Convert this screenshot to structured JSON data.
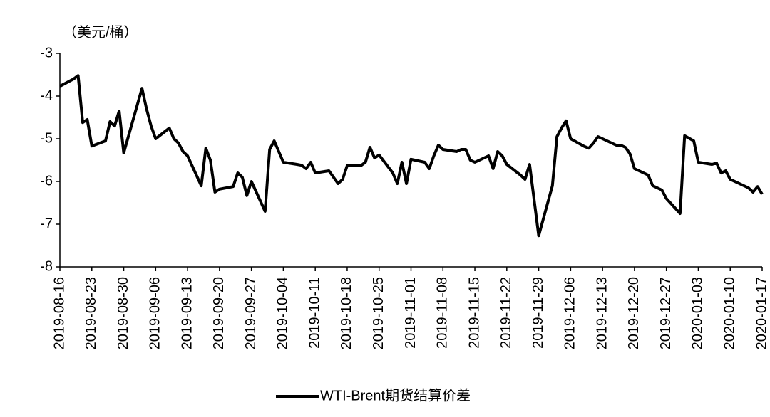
{
  "chart_data": {
    "type": "line",
    "y_label": "（美元/桶）",
    "x": [
      "2019-08-16",
      "2019-08-19",
      "2019-08-20",
      "2019-08-21",
      "2019-08-22",
      "2019-08-23",
      "2019-08-26",
      "2019-08-27",
      "2019-08-28",
      "2019-08-29",
      "2019-08-30",
      "2019-09-03",
      "2019-09-04",
      "2019-09-05",
      "2019-09-06",
      "2019-09-09",
      "2019-09-10",
      "2019-09-11",
      "2019-09-12",
      "2019-09-13",
      "2019-09-16",
      "2019-09-17",
      "2019-09-18",
      "2019-09-19",
      "2019-09-20",
      "2019-09-23",
      "2019-09-24",
      "2019-09-25",
      "2019-09-26",
      "2019-09-27",
      "2019-09-30",
      "2019-10-01",
      "2019-10-02",
      "2019-10-03",
      "2019-10-04",
      "2019-10-07",
      "2019-10-08",
      "2019-10-09",
      "2019-10-10",
      "2019-10-11",
      "2019-10-14",
      "2019-10-15",
      "2019-10-16",
      "2019-10-17",
      "2019-10-18",
      "2019-10-21",
      "2019-10-22",
      "2019-10-23",
      "2019-10-24",
      "2019-10-25",
      "2019-10-28",
      "2019-10-29",
      "2019-10-30",
      "2019-10-31",
      "2019-11-01",
      "2019-11-04",
      "2019-11-05",
      "2019-11-06",
      "2019-11-07",
      "2019-11-08",
      "2019-11-11",
      "2019-11-12",
      "2019-11-13",
      "2019-11-14",
      "2019-11-15",
      "2019-11-18",
      "2019-11-19",
      "2019-11-20",
      "2019-11-21",
      "2019-11-22",
      "2019-11-25",
      "2019-11-26",
      "2019-11-27",
      "2019-11-29",
      "2019-12-02",
      "2019-12-03",
      "2019-12-04",
      "2019-12-05",
      "2019-12-06",
      "2019-12-09",
      "2019-12-10",
      "2019-12-11",
      "2019-12-12",
      "2019-12-13",
      "2019-12-16",
      "2019-12-17",
      "2019-12-18",
      "2019-12-19",
      "2019-12-20",
      "2019-12-23",
      "2019-12-24",
      "2019-12-26",
      "2019-12-27",
      "2019-12-30",
      "2019-12-31",
      "2020-01-02",
      "2020-01-03",
      "2020-01-06",
      "2020-01-07",
      "2020-01-08",
      "2020-01-09",
      "2020-01-10",
      "2020-01-13",
      "2020-01-14",
      "2020-01-15",
      "2020-01-16",
      "2020-01-17"
    ],
    "series": [
      {
        "name": "WTI-Brent期货结算价差",
        "color": "#000000",
        "values": [
          -3.77,
          -3.6,
          -3.52,
          -4.62,
          -4.55,
          -5.17,
          -5.05,
          -4.6,
          -4.7,
          -4.35,
          -5.33,
          -3.82,
          -4.3,
          -4.7,
          -5.0,
          -4.75,
          -5.0,
          -5.1,
          -5.3,
          -5.4,
          -6.1,
          -5.22,
          -5.5,
          -6.25,
          -6.18,
          -6.12,
          -5.8,
          -5.9,
          -6.33,
          -6.0,
          -6.7,
          -5.25,
          -5.05,
          -5.3,
          -5.55,
          -5.6,
          -5.62,
          -5.7,
          -5.55,
          -5.8,
          -5.75,
          -5.9,
          -6.05,
          -5.95,
          -5.63,
          -5.63,
          -5.55,
          -5.2,
          -5.45,
          -5.38,
          -5.8,
          -6.05,
          -5.55,
          -6.05,
          -5.48,
          -5.55,
          -5.7,
          -5.4,
          -5.15,
          -5.25,
          -5.3,
          -5.25,
          -5.25,
          -5.5,
          -5.55,
          -5.4,
          -5.7,
          -5.3,
          -5.4,
          -5.6,
          -5.85,
          -5.95,
          -5.6,
          -7.27,
          -6.1,
          -4.95,
          -4.75,
          -4.58,
          -5.0,
          -5.18,
          -5.22,
          -5.1,
          -4.95,
          -5.0,
          -5.15,
          -5.15,
          -5.2,
          -5.35,
          -5.7,
          -5.85,
          -6.1,
          -6.2,
          -6.4,
          -6.75,
          -4.93,
          -5.05,
          -5.55,
          -5.6,
          -5.57,
          -5.8,
          -5.75,
          -5.95,
          -6.1,
          -6.15,
          -6.25,
          -6.12,
          -6.3
        ]
      }
    ],
    "xlim": [
      "2019-08-16",
      "2020-01-17"
    ],
    "xticks": [
      "2019-08-16",
      "2019-08-23",
      "2019-08-30",
      "2019-09-06",
      "2019-09-13",
      "2019-09-20",
      "2019-09-27",
      "2019-10-04",
      "2019-10-11",
      "2019-10-18",
      "2019-10-25",
      "2019-11-01",
      "2019-11-08",
      "2019-11-15",
      "2019-11-22",
      "2019-11-29",
      "2019-12-06",
      "2019-12-13",
      "2019-12-20",
      "2019-12-27",
      "2020-01-03",
      "2020-01-10",
      "2020-01-17"
    ],
    "ylim": [
      -8,
      -3
    ],
    "yticks": [
      -8,
      -7,
      -6,
      -5,
      -4,
      -3
    ],
    "legend": "bottom"
  }
}
